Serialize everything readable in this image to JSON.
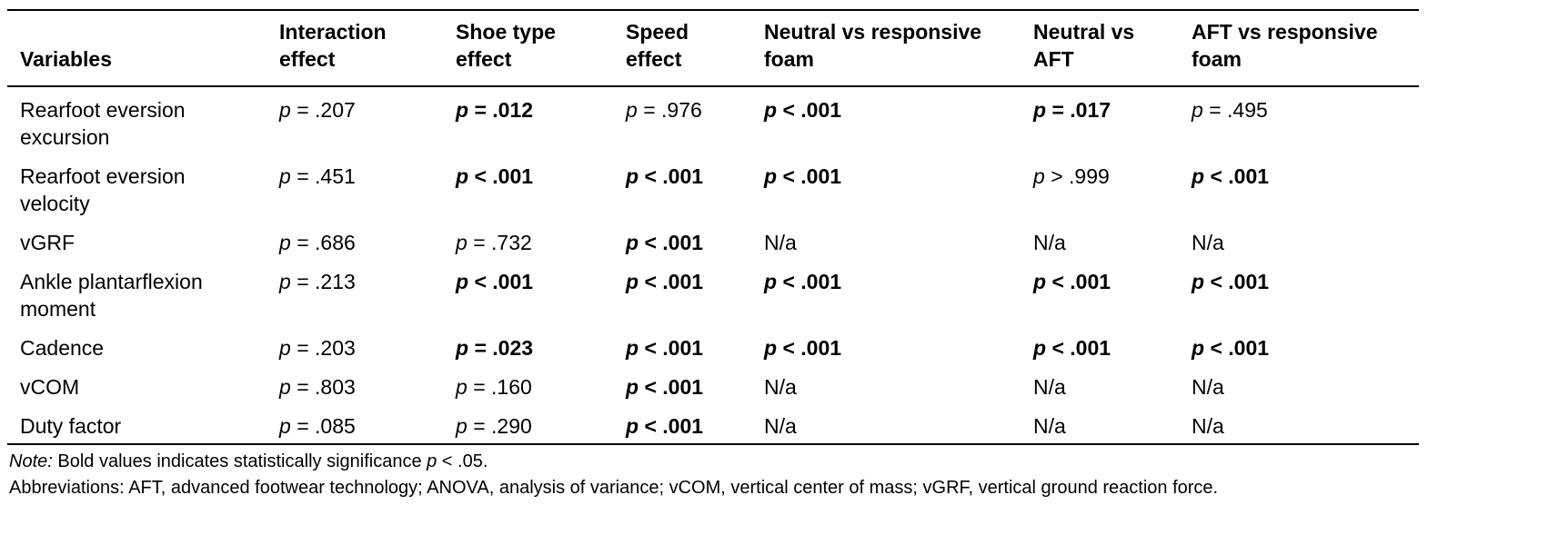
{
  "table": {
    "headers": [
      "Variables",
      "Interaction effect",
      "Shoe type effect",
      "Speed effect",
      "Neutral vs responsive foam",
      "Neutral vs AFT",
      "AFT vs responsive foam"
    ],
    "rows": [
      {
        "variable": "Rearfoot eversion excursion",
        "cells": [
          {
            "op": "=",
            "value": ".207",
            "bold": false
          },
          {
            "op": "=",
            "value": ".012",
            "bold": true
          },
          {
            "op": "=",
            "value": ".976",
            "bold": false
          },
          {
            "op": "<",
            "value": ".001",
            "bold": true
          },
          {
            "op": "=",
            "value": ".017",
            "bold": true
          },
          {
            "op": "=",
            "value": ".495",
            "bold": false
          }
        ]
      },
      {
        "variable": "Rearfoot eversion velocity",
        "cells": [
          {
            "op": "=",
            "value": ".451",
            "bold": false
          },
          {
            "op": "<",
            "value": ".001",
            "bold": true
          },
          {
            "op": "<",
            "value": ".001",
            "bold": true
          },
          {
            "op": "<",
            "value": ".001",
            "bold": true
          },
          {
            "op": ">",
            "value": ".999",
            "bold": false
          },
          {
            "op": "<",
            "value": ".001",
            "bold": true
          }
        ]
      },
      {
        "variable": "vGRF",
        "cells": [
          {
            "op": "=",
            "value": ".686",
            "bold": false
          },
          {
            "op": "=",
            "value": ".732",
            "bold": false
          },
          {
            "op": "<",
            "value": ".001",
            "bold": true
          },
          {
            "text": "N/a"
          },
          {
            "text": "N/a"
          },
          {
            "text": "N/a"
          }
        ]
      },
      {
        "variable": "Ankle plantarflexion moment",
        "cells": [
          {
            "op": "=",
            "value": ".213",
            "bold": false
          },
          {
            "op": "<",
            "value": ".001",
            "bold": true
          },
          {
            "op": "<",
            "value": ".001",
            "bold": true
          },
          {
            "op": "<",
            "value": ".001",
            "bold": true
          },
          {
            "op": "<",
            "value": ".001",
            "bold": true
          },
          {
            "op": "<",
            "value": ".001",
            "bold": true
          }
        ]
      },
      {
        "variable": "Cadence",
        "cells": [
          {
            "op": "=",
            "value": ".203",
            "bold": false
          },
          {
            "op": "=",
            "value": ".023",
            "bold": true
          },
          {
            "op": "<",
            "value": ".001",
            "bold": true
          },
          {
            "op": "<",
            "value": ".001",
            "bold": true
          },
          {
            "op": "<",
            "value": ".001",
            "bold": true
          },
          {
            "op": "<",
            "value": ".001",
            "bold": true
          }
        ]
      },
      {
        "variable": "vCOM",
        "cells": [
          {
            "op": "=",
            "value": ".803",
            "bold": false
          },
          {
            "op": "=",
            "value": ".160",
            "bold": false
          },
          {
            "op": "<",
            "value": ".001",
            "bold": true
          },
          {
            "text": "N/a"
          },
          {
            "text": "N/a"
          },
          {
            "text": "N/a"
          }
        ]
      },
      {
        "variable": "Duty factor",
        "cells": [
          {
            "op": "=",
            "value": ".085",
            "bold": false
          },
          {
            "op": "=",
            "value": ".290",
            "bold": false
          },
          {
            "op": "<",
            "value": ".001",
            "bold": true
          },
          {
            "text": "N/a"
          },
          {
            "text": "N/a"
          },
          {
            "text": "N/a"
          }
        ]
      }
    ]
  },
  "note": {
    "label": "Note:",
    "text_before": " Bold values indicates statistically significance ",
    "p": "p",
    "text_after": " < .05."
  },
  "abbreviations": "Abbreviations: AFT, advanced footwear technology; ANOVA, analysis of variance; vCOM, vertical center of mass; vGRF, vertical ground reaction force."
}
